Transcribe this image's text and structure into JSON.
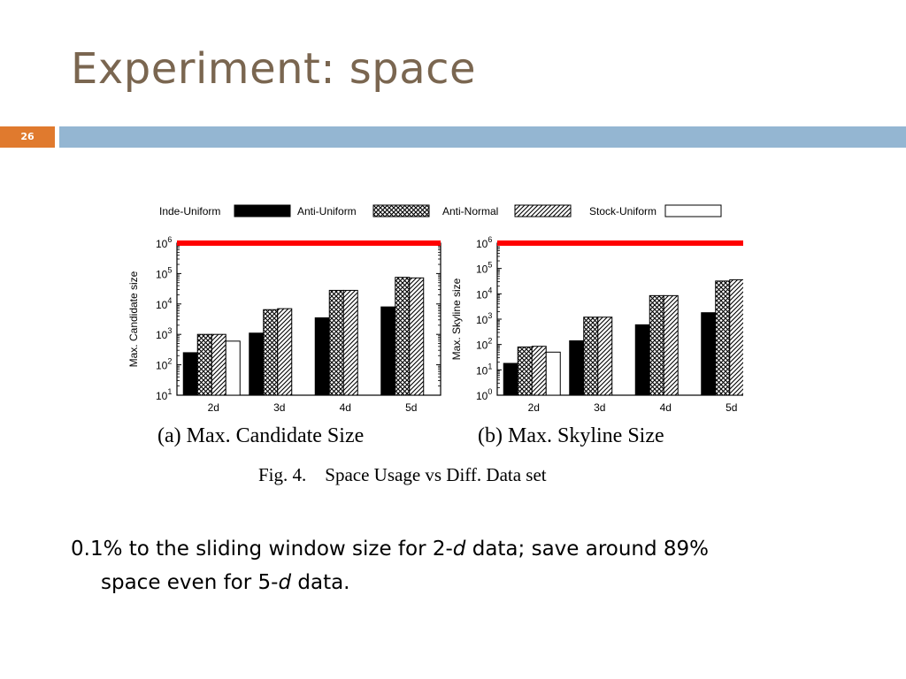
{
  "slide": {
    "title": "Experiment: space",
    "number": "26",
    "accent_orange": "#e07a2e",
    "accent_blue": "#94b6d2",
    "title_color": "#7a6650"
  },
  "legend": [
    "Inde-Uniform",
    "Anti-Uniform",
    "Anti-Normal",
    "Stock-Uniform"
  ],
  "chart_data": [
    {
      "type": "bar",
      "panel_caption": "(a) Max. Candidate Size",
      "ylabel": "Max. Candidate size",
      "yscale": "log",
      "ylim": [
        10,
        1000000
      ],
      "yticks": [
        "10^1",
        "10^2",
        "10^3",
        "10^4",
        "10^5",
        "10^6"
      ],
      "categories": [
        "2d",
        "3d",
        "4d",
        "5d"
      ],
      "reference_line": 1000000,
      "reference_color": "#ff0000",
      "series": [
        {
          "name": "Inde-Uniform",
          "values": [
            250,
            1100,
            3500,
            8000
          ]
        },
        {
          "name": "Anti-Uniform",
          "values": [
            1000,
            6500,
            28000,
            75000
          ]
        },
        {
          "name": "Anti-Normal",
          "values": [
            1000,
            7000,
            28000,
            72000
          ]
        },
        {
          "name": "Stock-Uniform",
          "values": [
            600,
            null,
            null,
            null
          ]
        }
      ]
    },
    {
      "type": "bar",
      "panel_caption": "(b) Max. Skyline Size",
      "ylabel": "Max. Skyline size",
      "yscale": "log",
      "ylim": [
        1,
        1000000
      ],
      "yticks": [
        "10^0",
        "10^1",
        "10^2",
        "10^3",
        "10^4",
        "10^5",
        "10^6"
      ],
      "categories": [
        "2d",
        "3d",
        "4d",
        "5d"
      ],
      "reference_line": 1000000,
      "reference_color": "#ff0000",
      "series": [
        {
          "name": "Inde-Uniform",
          "values": [
            18,
            140,
            600,
            1800
          ]
        },
        {
          "name": "Anti-Uniform",
          "values": [
            80,
            1200,
            8500,
            32000
          ]
        },
        {
          "name": "Anti-Normal",
          "values": [
            85,
            1200,
            8500,
            36000
          ]
        },
        {
          "name": "Stock-Uniform",
          "values": [
            50,
            null,
            null,
            null
          ]
        }
      ]
    }
  ],
  "figure_caption": "Fig. 4.    Space Usage vs Diff. Data set",
  "body": {
    "part1": "0.1% to the sliding window size for 2-",
    "d1": "d",
    "part2": " data; save around 89%",
    "part3": "space even for 5-",
    "d2": "d",
    "part4": " data."
  }
}
